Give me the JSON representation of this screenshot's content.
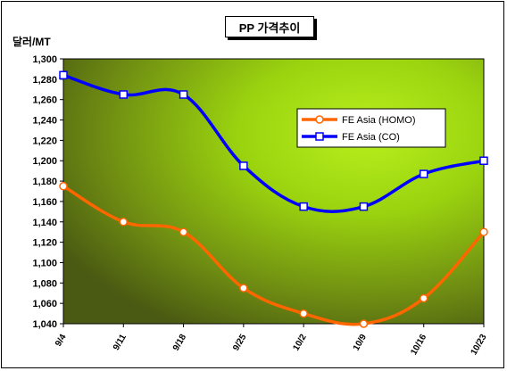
{
  "chart_data": {
    "type": "line",
    "title": "PP 가격추이",
    "ylabel": "달러/MT",
    "xlabel": "",
    "categories": [
      "9/4",
      "9/11",
      "9/18",
      "9/25",
      "10/2",
      "10/9",
      "10/16",
      "10/23"
    ],
    "ylim": [
      1040,
      1300
    ],
    "yticks": [
      "1,040",
      "1,060",
      "1,080",
      "1,100",
      "1,120",
      "1,140",
      "1,160",
      "1,180",
      "1,200",
      "1,220",
      "1,240",
      "1,260",
      "1,280",
      "1,300"
    ],
    "grid": false,
    "legend": "center-right",
    "series": [
      {
        "name": "FE Asia (HOMO)",
        "color": "#ff6600",
        "marker": "circle",
        "values": [
          1175,
          1140,
          1130,
          1075,
          1050,
          1040,
          1065,
          1130
        ]
      },
      {
        "name": "FE Asia (CO)",
        "color": "#0000ff",
        "marker": "square",
        "values": [
          1284,
          1265,
          1265,
          1195,
          1155,
          1155,
          1187,
          1200
        ]
      }
    ]
  }
}
